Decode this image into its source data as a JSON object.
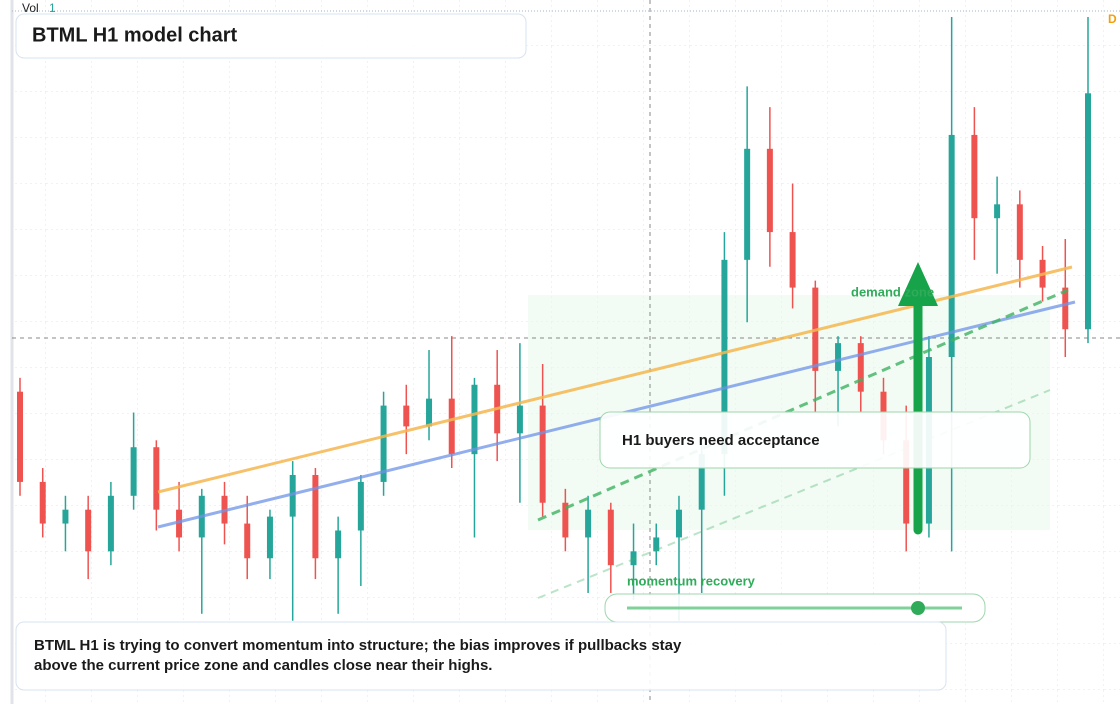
{
  "header": {
    "title": "BTML H1 model chart",
    "vol_label": "Vol",
    "vol_value": "1",
    "corner_tag": "D"
  },
  "annotations": {
    "zone_label": "demand zone",
    "callout": "H1 buyers need acceptance",
    "momentum_label": "momentum recovery",
    "summary": "BTML H1 is trying to convert momentum into structure; the bias improves if pullbacks stay above the current price zone and candles close near their highs."
  },
  "chart_data": {
    "type": "candlestick",
    "ylim": [
      0,
      100
    ],
    "up_color": "#26a69a",
    "down_color": "#ef5350",
    "ohlc": [
      [
        45,
        47,
        30,
        32
      ],
      [
        32,
        34,
        24,
        26
      ],
      [
        26,
        30,
        22,
        28
      ],
      [
        28,
        30,
        18,
        22
      ],
      [
        22,
        32,
        20,
        30
      ],
      [
        30,
        42,
        28,
        37
      ],
      [
        37,
        38,
        25,
        28
      ],
      [
        28,
        32,
        22,
        24
      ],
      [
        24,
        31,
        13,
        30
      ],
      [
        30,
        32,
        23,
        26
      ],
      [
        26,
        30,
        18,
        21
      ],
      [
        21,
        28,
        18,
        27
      ],
      [
        27,
        35,
        12,
        33
      ],
      [
        33,
        34,
        18,
        21
      ],
      [
        21,
        27,
        13,
        25
      ],
      [
        25,
        33,
        17,
        32
      ],
      [
        32,
        45,
        30,
        43
      ],
      [
        43,
        46,
        36,
        40
      ],
      [
        40,
        51,
        38,
        44
      ],
      [
        44,
        53,
        34,
        36
      ],
      [
        36,
        47,
        24,
        46
      ],
      [
        46,
        51,
        35,
        39
      ],
      [
        39,
        52,
        29,
        43
      ],
      [
        43,
        49,
        27,
        29
      ],
      [
        29,
        31,
        22,
        24
      ],
      [
        24,
        30,
        16,
        28
      ],
      [
        28,
        29,
        16,
        20
      ],
      [
        20,
        26,
        15,
        22
      ],
      [
        22,
        26,
        20,
        24
      ],
      [
        24,
        30,
        12,
        28
      ],
      [
        28,
        38,
        16,
        36
      ],
      [
        36,
        68,
        30,
        64
      ],
      [
        64,
        89,
        55,
        80
      ],
      [
        80,
        86,
        63,
        68
      ],
      [
        68,
        75,
        57,
        60
      ],
      [
        60,
        61,
        42,
        48
      ],
      [
        48,
        53,
        40,
        52
      ],
      [
        52,
        53,
        42,
        45
      ],
      [
        45,
        47,
        36,
        38
      ],
      [
        38,
        43,
        22,
        26
      ],
      [
        26,
        53,
        24,
        50
      ],
      [
        50,
        99,
        22,
        82
      ],
      [
        82,
        86,
        64,
        70
      ],
      [
        70,
        76,
        62,
        72
      ],
      [
        72,
        74,
        60,
        64
      ],
      [
        64,
        66,
        58,
        60
      ],
      [
        60,
        67,
        50,
        54
      ],
      [
        54,
        99,
        52,
        88
      ]
    ]
  }
}
